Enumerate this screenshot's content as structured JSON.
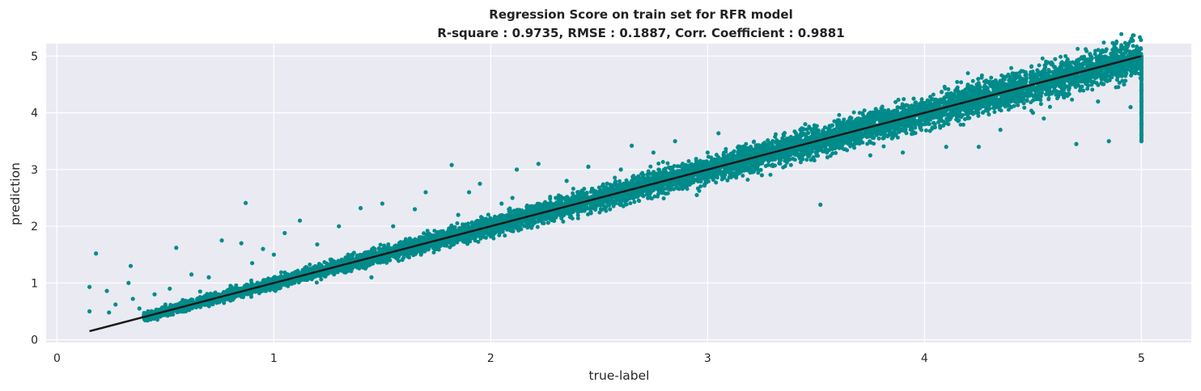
{
  "chart_data": {
    "type": "scatter",
    "title": "Regression Score on train set for RFR model",
    "subtitle": "R-square : 0.9735,   RMSE : 0.1887,   Corr. Coefficient : 0.9881",
    "xlabel": "true-label",
    "ylabel": "prediction",
    "xlim": [
      -0.05,
      5.23
    ],
    "ylim": [
      -0.05,
      5.22
    ],
    "xticks": [
      0,
      1,
      2,
      3,
      4,
      5
    ],
    "yticks": [
      0,
      1,
      2,
      3,
      4,
      5
    ],
    "grid": true,
    "background": "#eaeaf2",
    "colors": {
      "points": "#008b8b",
      "line": "#1a1a1a",
      "grid": "#ffffff"
    },
    "reference_line": {
      "x": [
        0.15,
        5.0
      ],
      "y": [
        0.15,
        5.0
      ]
    },
    "series": [
      {
        "points": [
          [
            0.15,
            0.93
          ],
          [
            0.15,
            0.5
          ],
          [
            0.18,
            1.52
          ],
          [
            0.23,
            0.86
          ],
          [
            0.24,
            0.48
          ],
          [
            0.27,
            0.62
          ],
          [
            0.33,
            1.0
          ],
          [
            0.34,
            1.3
          ],
          [
            0.35,
            0.72
          ],
          [
            0.38,
            0.55
          ],
          [
            0.42,
            0.5
          ],
          [
            0.45,
            0.8
          ],
          [
            0.5,
            0.62
          ],
          [
            0.52,
            0.9
          ],
          [
            0.55,
            1.62
          ],
          [
            0.58,
            0.7
          ],
          [
            0.62,
            1.15
          ],
          [
            0.66,
            0.85
          ],
          [
            0.7,
            1.1
          ],
          [
            0.76,
            1.75
          ],
          [
            0.8,
            0.95
          ],
          [
            0.85,
            1.7
          ],
          [
            0.87,
            2.41
          ],
          [
            0.9,
            1.35
          ],
          [
            0.95,
            1.6
          ],
          [
            1.0,
            1.5
          ],
          [
            1.05,
            1.88
          ],
          [
            1.12,
            2.1
          ],
          [
            1.2,
            1.68
          ],
          [
            1.25,
            1.3
          ],
          [
            1.3,
            2.0
          ],
          [
            1.36,
            1.5
          ],
          [
            1.4,
            2.32
          ],
          [
            1.45,
            1.1
          ],
          [
            1.5,
            2.4
          ],
          [
            1.55,
            2.0
          ],
          [
            1.6,
            1.5
          ],
          [
            1.65,
            2.3
          ],
          [
            1.7,
            2.6
          ],
          [
            1.75,
            1.7
          ],
          [
            1.82,
            3.08
          ],
          [
            1.85,
            2.2
          ],
          [
            1.9,
            2.6
          ],
          [
            1.95,
            2.75
          ],
          [
            2.0,
            1.9
          ],
          [
            2.05,
            2.4
          ],
          [
            2.1,
            2.5
          ],
          [
            2.12,
            3.0
          ],
          [
            2.18,
            2.2
          ],
          [
            2.22,
            3.1
          ],
          [
            2.3,
            2.5
          ],
          [
            2.35,
            2.8
          ],
          [
            2.4,
            2.6
          ],
          [
            2.45,
            3.05
          ],
          [
            2.5,
            2.6
          ],
          [
            2.55,
            2.3
          ],
          [
            2.6,
            3.0
          ],
          [
            2.65,
            3.42
          ],
          [
            2.7,
            2.6
          ],
          [
            2.75,
            3.3
          ],
          [
            2.8,
            2.8
          ],
          [
            2.85,
            3.5
          ],
          [
            2.9,
            2.9
          ],
          [
            2.95,
            2.55
          ],
          [
            3.0,
            3.3
          ],
          [
            3.05,
            3.64
          ],
          [
            3.1,
            3.0
          ],
          [
            3.15,
            3.4
          ],
          [
            3.2,
            3.2
          ],
          [
            3.25,
            2.9
          ],
          [
            3.3,
            3.5
          ],
          [
            3.35,
            3.62
          ],
          [
            3.4,
            3.3
          ],
          [
            3.45,
            3.8
          ],
          [
            3.5,
            3.5
          ],
          [
            3.52,
            2.38
          ],
          [
            3.55,
            3.3
          ],
          [
            3.6,
            3.4
          ],
          [
            3.65,
            3.6
          ],
          [
            3.7,
            3.8
          ],
          [
            3.75,
            3.25
          ],
          [
            3.8,
            4.0
          ],
          [
            3.85,
            3.55
          ],
          [
            3.9,
            3.3
          ],
          [
            3.95,
            4.25
          ],
          [
            4.0,
            3.8
          ],
          [
            4.05,
            4.1
          ],
          [
            4.1,
            3.4
          ],
          [
            4.15,
            4.42
          ],
          [
            4.2,
            4.0
          ],
          [
            4.25,
            3.4
          ],
          [
            4.3,
            4.55
          ],
          [
            4.35,
            3.7
          ],
          [
            4.4,
            4.1
          ],
          [
            4.45,
            4.6
          ],
          [
            4.5,
            4.0
          ],
          [
            4.55,
            3.9
          ],
          [
            4.6,
            4.7
          ],
          [
            4.65,
            4.3
          ],
          [
            4.7,
            3.45
          ],
          [
            4.75,
            4.8
          ],
          [
            4.8,
            4.2
          ],
          [
            4.85,
            3.5
          ],
          [
            4.88,
            4.85
          ],
          [
            4.92,
            4.5
          ],
          [
            4.95,
            4.1
          ],
          [
            5.0,
            5.0
          ],
          [
            5.0,
            4.8
          ],
          [
            5.0,
            4.6
          ],
          [
            5.0,
            4.4
          ],
          [
            5.0,
            4.2
          ],
          [
            5.0,
            4.0
          ],
          [
            5.0,
            3.8
          ],
          [
            5.0,
            3.6
          ],
          [
            5.0,
            3.5
          ]
        ]
      }
    ]
  }
}
